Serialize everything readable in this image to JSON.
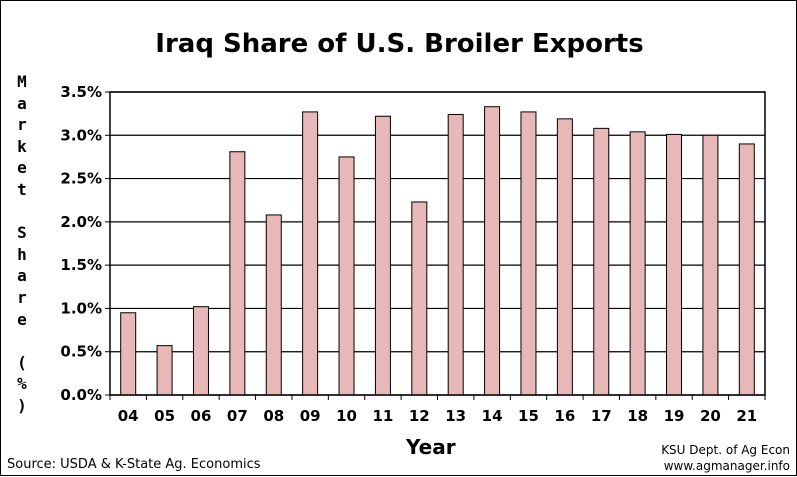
{
  "chart_data": {
    "type": "bar",
    "title": "Iraq Share of U.S. Broiler Exports",
    "xlabel": "Year",
    "ylabel": "Market Share (%)",
    "categories": [
      "04",
      "05",
      "06",
      "07",
      "08",
      "09",
      "10",
      "11",
      "12",
      "13",
      "14",
      "15",
      "16",
      "17",
      "18",
      "19",
      "20",
      "21"
    ],
    "values": [
      0.95,
      0.57,
      1.02,
      2.81,
      2.08,
      3.27,
      2.75,
      3.22,
      2.23,
      3.24,
      3.33,
      3.27,
      3.19,
      3.08,
      3.04,
      3.01,
      3.0,
      2.9
    ],
    "ylim": [
      0,
      3.5
    ],
    "yticks": [
      "0.0%",
      "0.5%",
      "1.0%",
      "1.5%",
      "2.0%",
      "2.5%",
      "3.0%",
      "3.5%"
    ],
    "ytick_values": [
      0,
      0.5,
      1.0,
      1.5,
      2.0,
      2.5,
      3.0,
      3.5
    ],
    "grid": true,
    "colors": {
      "bar_fill": "#e8b8b8",
      "bar_stroke": "#000000",
      "grid": "#000000"
    }
  },
  "footer": {
    "source": "Source:  USDA & K-State Ag. Economics",
    "credit_line1": "KSU Dept. of Ag Econ",
    "credit_line2": "www.agmanager.info"
  }
}
